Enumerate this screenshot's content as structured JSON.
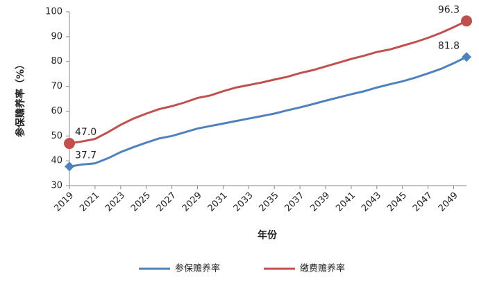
{
  "chart_data": {
    "type": "line",
    "xlabel": "年份",
    "ylabel": "参保赡养率（%）",
    "x": [
      2019,
      2020,
      2021,
      2022,
      2023,
      2024,
      2025,
      2026,
      2027,
      2028,
      2029,
      2030,
      2031,
      2032,
      2033,
      2034,
      2035,
      2036,
      2037,
      2038,
      2039,
      2040,
      2041,
      2042,
      2043,
      2044,
      2045,
      2046,
      2047,
      2048,
      2049,
      2050
    ],
    "xlim": [
      2019,
      2050
    ],
    "xticks": [
      2019,
      2021,
      2023,
      2025,
      2027,
      2029,
      2031,
      2033,
      2035,
      2037,
      2039,
      2041,
      2043,
      2045,
      2047,
      2049
    ],
    "ylim": [
      30,
      100
    ],
    "yticks": [
      30,
      40,
      50,
      60,
      70,
      80,
      90,
      100
    ],
    "grid": false,
    "legend": "bottom",
    "series": [
      {
        "name": "参保赡养率",
        "color": "#4f81bd",
        "marker": "diamond",
        "values": [
          37.7,
          38.5,
          39,
          41,
          43.5,
          45.5,
          47.3,
          49,
          50,
          51.5,
          53,
          54,
          55,
          56,
          57,
          58,
          59,
          60.3,
          61.5,
          62.8,
          64.2,
          65.5,
          66.8,
          68,
          69.5,
          70.8,
          72,
          73.5,
          75.2,
          77,
          79.3,
          81.8
        ],
        "value_labels": [
          "37.7",
          null,
          null,
          null,
          null,
          null,
          null,
          null,
          null,
          null,
          null,
          null,
          null,
          null,
          null,
          null,
          null,
          null,
          null,
          null,
          null,
          null,
          null,
          null,
          null,
          null,
          null,
          null,
          null,
          null,
          null,
          "81.8"
        ]
      },
      {
        "name": "缴费赡养率",
        "color": "#c0504d",
        "marker": "circle",
        "values": [
          47.0,
          47.8,
          48.8,
          51.5,
          54.5,
          57,
          59,
          60.8,
          62,
          63.5,
          65.3,
          66.3,
          68,
          69.5,
          70.5,
          71.5,
          72.7,
          73.8,
          75.3,
          76.5,
          78,
          79.5,
          81,
          82.3,
          83.8,
          84.8,
          86.3,
          87.8,
          89.5,
          91.5,
          93.8,
          96.3
        ],
        "value_labels": [
          "47.0",
          null,
          null,
          null,
          null,
          null,
          null,
          null,
          null,
          null,
          null,
          null,
          null,
          null,
          null,
          null,
          null,
          null,
          null,
          null,
          null,
          null,
          null,
          null,
          null,
          null,
          null,
          null,
          null,
          null,
          null,
          "96.3"
        ]
      }
    ]
  }
}
